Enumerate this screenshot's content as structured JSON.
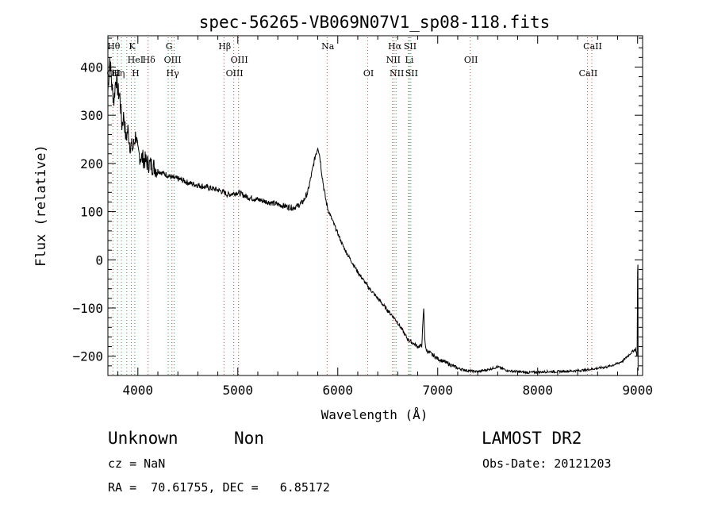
{
  "chart_data": {
    "type": "line",
    "title": "spec-56265-VB069N07V1_sp08-118.fits",
    "xlabel": "Wavelength (Å)",
    "ylabel": "Flux (relative)",
    "xlim": [
      3700,
      9050
    ],
    "ylim": [
      -240,
      465
    ],
    "xticks": [
      4000,
      5000,
      6000,
      7000,
      8000,
      9000
    ],
    "yticks": [
      -200,
      -100,
      0,
      100,
      200,
      300,
      400
    ],
    "grid": false,
    "series": [
      {
        "x": [
          3700,
          3720,
          3740,
          3760,
          3780,
          3800,
          3820,
          3840,
          3860,
          3880,
          3900,
          3920,
          3950,
          3980,
          4000,
          4050,
          4100,
          4150,
          4200,
          4250,
          4300,
          4350,
          4400,
          4450,
          4500,
          4600,
          4700,
          4800,
          4861,
          4900,
          5000,
          5100,
          5200,
          5300,
          5400,
          5500,
          5550,
          5600,
          5650,
          5700,
          5730,
          5760,
          5780,
          5790,
          5800,
          5820,
          5840,
          5860,
          5880,
          5900,
          5950,
          6000,
          6050,
          6100,
          6200,
          6300,
          6400,
          6500,
          6563,
          6600,
          6700,
          6800,
          6840,
          6860,
          6870,
          6880,
          6900,
          7000,
          7100,
          7200,
          7300,
          7400,
          7500,
          7600,
          7700,
          7800,
          7900,
          8000,
          8100,
          8200,
          8300,
          8400,
          8500,
          8600,
          8700,
          8800,
          8850,
          8900,
          8950,
          8980,
          8995,
          9000,
          9003,
          9005
        ],
        "y": [
          350,
          420,
          360,
          330,
          380,
          350,
          340,
          280,
          300,
          250,
          270,
          240,
          230,
          260,
          220,
          210,
          200,
          195,
          185,
          180,
          175,
          170,
          168,
          165,
          160,
          155,
          150,
          145,
          140,
          135,
          140,
          130,
          125,
          120,
          115,
          110,
          108,
          112,
          120,
          140,
          170,
          200,
          220,
          225,
          235,
          215,
          180,
          150,
          125,
          105,
          80,
          55,
          30,
          10,
          -25,
          -55,
          -80,
          -105,
          -120,
          -130,
          -165,
          -180,
          -178,
          -100,
          -160,
          -185,
          -190,
          -205,
          -215,
          -225,
          -230,
          -232,
          -228,
          -222,
          -230,
          -232,
          -234,
          -233,
          -232,
          -232,
          -231,
          -230,
          -228,
          -225,
          -222,
          -215,
          -210,
          -200,
          -190,
          -185,
          -200,
          -25,
          -10,
          -230
        ]
      }
    ],
    "line_markers": [
      {
        "x": 3750,
        "labels": [
          "Hθ",
          "",
          "OII"
        ]
      },
      {
        "x": 3797,
        "labels": [
          "",
          "",
          "Hη"
        ]
      },
      {
        "x": 3835,
        "labels": [
          "",
          "",
          ""
        ]
      },
      {
        "x": 3889,
        "labels": [
          "",
          "",
          ""
        ]
      },
      {
        "x": 3934,
        "labels": [
          "K",
          "",
          ""
        ]
      },
      {
        "x": 3969,
        "labels": [
          "",
          "HeI",
          "H"
        ]
      },
      {
        "x": 4102,
        "labels": [
          "",
          "Hδ",
          ""
        ]
      },
      {
        "x": 4304,
        "labels": [
          "G",
          "",
          ""
        ]
      },
      {
        "x": 4340,
        "labels": [
          "",
          "OIII",
          "Hγ"
        ]
      },
      {
        "x": 4363,
        "labels": [
          "",
          "",
          ""
        ]
      },
      {
        "x": 4861,
        "labels": [
          "Hβ",
          "",
          ""
        ]
      },
      {
        "x": 4959,
        "labels": [
          "",
          "",
          "OIII"
        ]
      },
      {
        "x": 5007,
        "labels": [
          "",
          "OIII",
          ""
        ]
      },
      {
        "x": 5893,
        "labels": [
          "Na",
          "",
          ""
        ]
      },
      {
        "x": 6300,
        "labels": [
          "",
          "",
          "OI"
        ]
      },
      {
        "x": 6548,
        "labels": [
          "",
          "NII",
          ""
        ]
      },
      {
        "x": 6563,
        "labels": [
          "Hα",
          "",
          ""
        ]
      },
      {
        "x": 6583,
        "labels": [
          "",
          "",
          "NII"
        ]
      },
      {
        "x": 6708,
        "labels": [
          "",
          "Li",
          ""
        ]
      },
      {
        "x": 6716,
        "labels": [
          "SII",
          "",
          ""
        ]
      },
      {
        "x": 6731,
        "labels": [
          "",
          "",
          "SII"
        ]
      },
      {
        "x": 7325,
        "labels": [
          "",
          "OII",
          ""
        ]
      },
      {
        "x": 8498,
        "labels": [
          "",
          "",
          "CaII"
        ]
      },
      {
        "x": 8542,
        "labels": [
          "CaII",
          "",
          ""
        ]
      }
    ]
  },
  "info": {
    "class": "Unknown",
    "subclass": "Non",
    "survey": "LAMOST DR2",
    "cz": "cz = NaN",
    "obs_date": "Obs-Date: 20121203",
    "coords": "RA =  70.61755, DEC =   6.85172"
  }
}
